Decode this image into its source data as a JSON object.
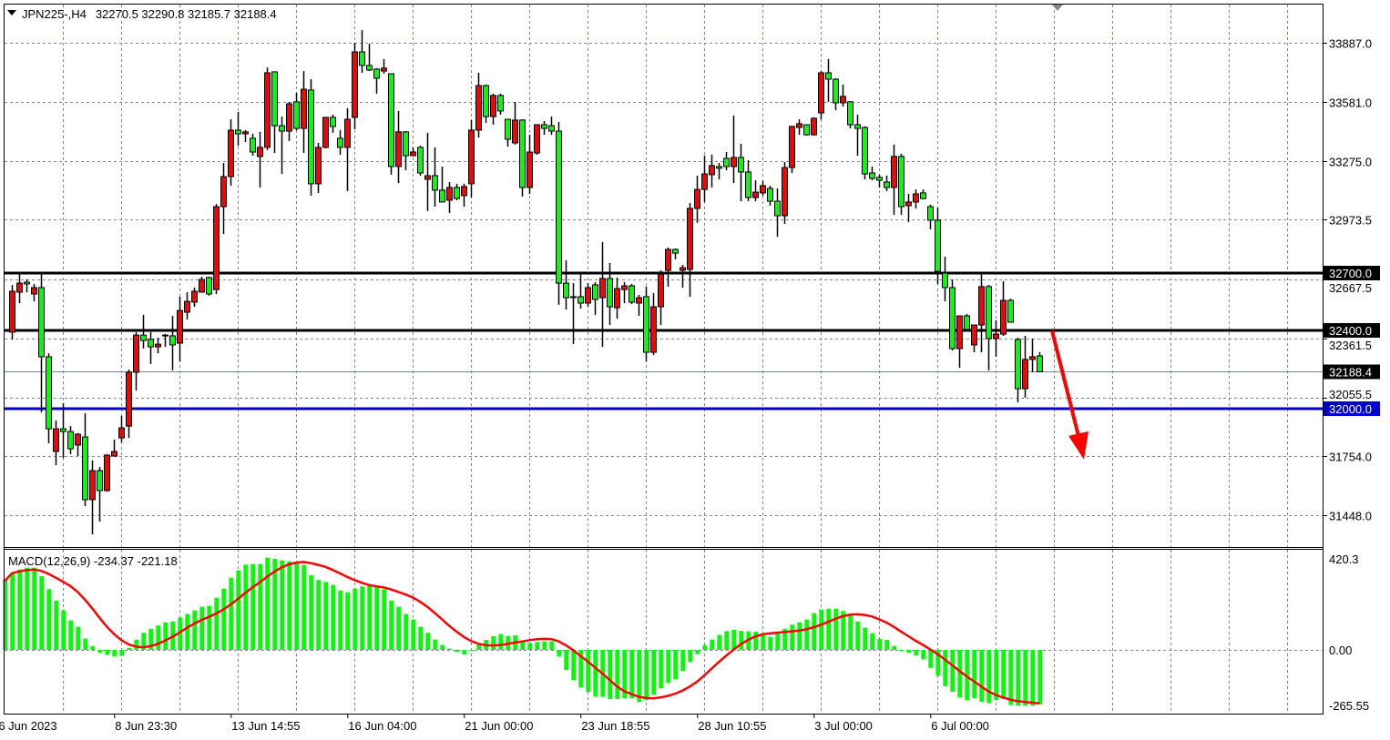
{
  "header": {
    "symbol_timeframe": "JPN225-,H4",
    "ohlc_text": "32270.5 32290.8 32185.7 32188.4"
  },
  "colors": {
    "bull_candle": "#ff0000",
    "bear_candle": "#00ff00",
    "candle_outline": "#000000",
    "grid": "#7b8898",
    "macd_histogram": "#00ff00",
    "macd_signal": "#ff0000",
    "level_line": "#000000",
    "support_line": "#0000c8",
    "bid_line": "#7b8898",
    "arrow": "#ff0000"
  },
  "chart_data": [
    {
      "type": "candlestick",
      "symbol": "JPN225-",
      "timeframe": "H4",
      "grid": true,
      "price_axis_labels": [
        "33887.0",
        "33581.0",
        "33275.0",
        "32973.5",
        "32667.5",
        "32361.5",
        "32055.5",
        "31754.0",
        "31448.0"
      ],
      "time_axis_labels": [
        "6 Jun 2023",
        "8 Jun 23:30",
        "13 Jun 14:55",
        "16 Jun 04:00",
        "21 Jun 00:00",
        "23 Jun 18:55",
        "28 Jun 10:55",
        "3 Jul 00:00",
        "6 Jul 00:00"
      ],
      "ylim": [
        31448.0,
        33887.0
      ],
      "horizontal_lines": [
        {
          "price": 32700.0,
          "label": "32700.0",
          "color": "#000000"
        },
        {
          "price": 32400.0,
          "label": "32400.0",
          "color": "#000000"
        },
        {
          "price": 32000.0,
          "label": "32000.0",
          "color": "#0000c8"
        }
      ],
      "current_price": {
        "price": 32188.4,
        "label": "32188.4"
      },
      "annotation_arrow": {
        "color": "#ff0000",
        "direction": "down",
        "from_price": 32400,
        "to_price": 31735
      },
      "ohlc": [
        [
          32393,
          32637,
          32355,
          32604
        ],
        [
          32599,
          32698,
          32543,
          32646
        ],
        [
          32651,
          32665,
          32599,
          32642
        ],
        [
          32590,
          32642,
          32552,
          32623
        ],
        [
          32623,
          32698,
          31979,
          32266
        ],
        [
          32266,
          32284,
          31819,
          31894
        ],
        [
          31777,
          31937,
          31706,
          31894
        ],
        [
          31894,
          32026,
          31744,
          31880
        ],
        [
          31880,
          31908,
          31763,
          31791
        ],
        [
          31810,
          31871,
          31753,
          31866
        ],
        [
          31852,
          31974,
          31495,
          31528
        ],
        [
          31528,
          31730,
          31349,
          31678
        ],
        [
          31678,
          31697,
          31415,
          31575
        ],
        [
          31575,
          31763,
          31570,
          31758
        ],
        [
          31753,
          31838,
          31753,
          31777
        ],
        [
          31847,
          31960,
          31824,
          31899
        ],
        [
          31908,
          32200,
          31847,
          32186
        ],
        [
          32186,
          32393,
          32092,
          32378
        ],
        [
          32378,
          32482,
          32308,
          32350
        ],
        [
          32355,
          32393,
          32228,
          32317
        ],
        [
          32317,
          32364,
          32284,
          32331
        ],
        [
          32374,
          32383,
          32317,
          32378
        ],
        [
          32374,
          32477,
          32195,
          32327
        ],
        [
          32336,
          32576,
          32242,
          32505
        ],
        [
          32496,
          32599,
          32458,
          32552
        ],
        [
          32548,
          32623,
          32524,
          32604
        ],
        [
          32599,
          32679,
          32599,
          32665
        ],
        [
          32675,
          32679,
          32581,
          32590
        ],
        [
          32613,
          33055,
          32590,
          33041
        ],
        [
          33041,
          33267,
          32900,
          33196
        ],
        [
          33196,
          33492,
          33149,
          33436
        ],
        [
          33436,
          33530,
          33356,
          33417
        ],
        [
          33417,
          33436,
          33375,
          33427
        ],
        [
          33394,
          33417,
          33304,
          33323
        ],
        [
          33300,
          33427,
          33140,
          33347
        ],
        [
          33347,
          33760,
          33333,
          33732
        ],
        [
          33737,
          33737,
          33318,
          33459
        ],
        [
          33459,
          33506,
          33210,
          33431
        ],
        [
          33431,
          33582,
          33380,
          33572
        ],
        [
          33582,
          33629,
          33436,
          33445
        ],
        [
          33445,
          33741,
          33318,
          33647
        ],
        [
          33643,
          33699,
          33098,
          33159
        ],
        [
          33159,
          33370,
          33112,
          33347
        ],
        [
          33347,
          33502,
          33342,
          33502
        ],
        [
          33502,
          33516,
          33422,
          33455
        ],
        [
          33394,
          33436,
          33309,
          33347
        ],
        [
          33347,
          33549,
          33121,
          33492
        ],
        [
          33502,
          33887,
          33441,
          33840
        ],
        [
          33840,
          33953,
          33732,
          33770
        ],
        [
          33770,
          33882,
          33741,
          33746
        ],
        [
          33751,
          33756,
          33624,
          33704
        ],
        [
          33741,
          33803,
          33727,
          33756
        ],
        [
          33727,
          33727,
          33206,
          33248
        ],
        [
          33248,
          33535,
          33163,
          33427
        ],
        [
          33427,
          33431,
          33229,
          33304
        ],
        [
          33304,
          33347,
          33304,
          33323
        ],
        [
          33347,
          33356,
          33201,
          33215
        ],
        [
          33182,
          33422,
          33018,
          33201
        ],
        [
          33201,
          33347,
          33041,
          33126
        ],
        [
          33126,
          33248,
          33065,
          33065
        ],
        [
          33074,
          33168,
          33008,
          33140
        ],
        [
          33140,
          33159,
          33074,
          33083
        ],
        [
          33098,
          33159,
          33041,
          33145
        ],
        [
          33159,
          33488,
          33088,
          33436
        ],
        [
          33436,
          33732,
          33398,
          33666
        ],
        [
          33666,
          33671,
          33474,
          33506
        ],
        [
          33506,
          33624,
          33464,
          33615
        ],
        [
          33615,
          33624,
          33516,
          33535
        ],
        [
          33492,
          33492,
          33351,
          33389
        ],
        [
          33370,
          33582,
          33361,
          33488
        ],
        [
          33488,
          33492,
          33093,
          33140
        ],
        [
          33140,
          33412,
          33107,
          33323
        ],
        [
          33318,
          33464,
          33309,
          33464
        ],
        [
          33464,
          33483,
          33412,
          33445
        ],
        [
          33459,
          33506,
          33412,
          33431
        ],
        [
          33431,
          33478,
          32534,
          32646
        ],
        [
          32646,
          32764,
          32510,
          32571
        ],
        [
          32576,
          32646,
          32331,
          32571
        ],
        [
          32576,
          32693,
          32515,
          32543
        ],
        [
          32543,
          32646,
          32524,
          32623
        ],
        [
          32637,
          32651,
          32482,
          32562
        ],
        [
          32571,
          32858,
          32317,
          32670
        ],
        [
          32670,
          32750,
          32430,
          32524
        ],
        [
          32519,
          32675,
          32463,
          32618
        ],
        [
          32613,
          32651,
          32543,
          32632
        ],
        [
          32632,
          32642,
          32538,
          32548
        ],
        [
          32543,
          32585,
          32477,
          32571
        ],
        [
          32576,
          32628,
          32242,
          32289
        ],
        [
          32289,
          32595,
          32275,
          32524
        ],
        [
          32524,
          32712,
          32430,
          32693
        ],
        [
          32712,
          32830,
          32628,
          32820
        ],
        [
          32820,
          32825,
          32769,
          32801
        ],
        [
          32712,
          32740,
          32623,
          32726
        ],
        [
          32717,
          33060,
          32576,
          33032
        ],
        [
          33032,
          33201,
          32957,
          33130
        ],
        [
          33130,
          33304,
          33065,
          33210
        ],
        [
          33206,
          33309,
          33140,
          33253
        ],
        [
          33248,
          33267,
          33182,
          33239
        ],
        [
          33290,
          33323,
          33229,
          33248
        ],
        [
          33248,
          33511,
          33163,
          33295
        ],
        [
          33295,
          33365,
          33069,
          33220
        ],
        [
          33220,
          33281,
          33069,
          33088
        ],
        [
          33088,
          33177,
          33069,
          33116
        ],
        [
          33112,
          33173,
          33098,
          33149
        ],
        [
          33135,
          33149,
          33046,
          33069
        ],
        [
          33069,
          33135,
          32886,
          32994
        ],
        [
          32994,
          33271,
          32952,
          33243
        ],
        [
          33243,
          33459,
          33215,
          33455
        ],
        [
          33450,
          33492,
          33412,
          33469
        ],
        [
          33464,
          33464,
          33408,
          33412
        ],
        [
          33412,
          33502,
          33408,
          33497
        ],
        [
          33525,
          33741,
          33492,
          33732
        ],
        [
          33732,
          33803,
          33582,
          33699
        ],
        [
          33699,
          33704,
          33539,
          33577
        ],
        [
          33577,
          33671,
          33558,
          33610
        ],
        [
          33582,
          33586,
          33445,
          33464
        ],
        [
          33464,
          33516,
          33304,
          33445
        ],
        [
          33450,
          33455,
          33182,
          33210
        ],
        [
          33215,
          33248,
          33177,
          33187
        ],
        [
          33192,
          33206,
          33140,
          33177
        ],
        [
          33168,
          33201,
          33121,
          33140
        ],
        [
          33140,
          33361,
          32999,
          33300
        ],
        [
          33300,
          33314,
          32999,
          33041
        ],
        [
          33046,
          33107,
          32961,
          33065
        ],
        [
          33065,
          33130,
          33032,
          33107
        ],
        [
          33112,
          33130,
          33079,
          33083
        ],
        [
          33041,
          33051,
          32924,
          32971
        ],
        [
          32971,
          33036,
          32642,
          32707
        ],
        [
          32698,
          32783,
          32552,
          32623
        ],
        [
          32623,
          32665,
          32299,
          32308
        ],
        [
          32308,
          32477,
          32209,
          32477
        ],
        [
          32477,
          32487,
          32407,
          32407
        ],
        [
          32327,
          32430,
          32289,
          32430
        ],
        [
          32430,
          32698,
          32289,
          32628
        ],
        [
          32628,
          32637,
          32195,
          32360
        ],
        [
          32360,
          32454,
          32266,
          32383
        ],
        [
          32383,
          32656,
          32374,
          32557
        ],
        [
          32557,
          32566,
          32444,
          32444
        ],
        [
          32355,
          32364,
          32031,
          32101
        ],
        [
          32101,
          32374,
          32054,
          32252
        ],
        [
          32252,
          32360,
          32186,
          32266
        ],
        [
          32270.5,
          32290.8,
          32185.7,
          32188.4
        ]
      ]
    },
    {
      "type": "bar",
      "indicator": "MACD(12,26,9)",
      "label": "MACD(12,26,9) -234.37 -221.18",
      "macd_value": -234.37,
      "signal_value": -221.18,
      "axis_labels": [
        "420.3",
        "0.00",
        "-265.55"
      ],
      "ylim": [
        -265.55,
        420.3
      ],
      "histogram": [
        359,
        376,
        385,
        385,
        345,
        284,
        231,
        185,
        138,
        108,
        53,
        18,
        -14,
        -24,
        -31,
        -28,
        9,
        48,
        80,
        99,
        114,
        129,
        133,
        151,
        168,
        185,
        202,
        206,
        244,
        287,
        338,
        372,
        399,
        402,
        402,
        432,
        426,
        419,
        415,
        412,
        398,
        349,
        327,
        318,
        304,
        278,
        270,
        287,
        297,
        300,
        294,
        284,
        231,
        202,
        168,
        142,
        108,
        80,
        48,
        23,
        6,
        -10,
        -21,
        -3,
        26,
        47,
        64,
        74,
        65,
        68,
        36,
        33,
        37,
        40,
        40,
        -31,
        -95,
        -142,
        -176,
        -197,
        -219,
        -220,
        -231,
        -231,
        -227,
        -226,
        -244,
        -234,
        -210,
        -180,
        -155,
        -138,
        -99,
        -57,
        -20,
        23,
        48,
        70,
        88,
        94,
        89,
        87,
        85,
        72,
        61,
        78,
        99,
        118,
        129,
        142,
        172,
        189,
        193,
        193,
        182,
        165,
        133,
        104,
        78,
        51,
        47,
        18,
        -6,
        -13,
        -27,
        -45,
        -84,
        -121,
        -170,
        -196,
        -223,
        -236,
        -226,
        -243,
        -249,
        -234,
        -230,
        -258,
        -261,
        -261,
        -261,
        -255
      ]
    }
  ]
}
